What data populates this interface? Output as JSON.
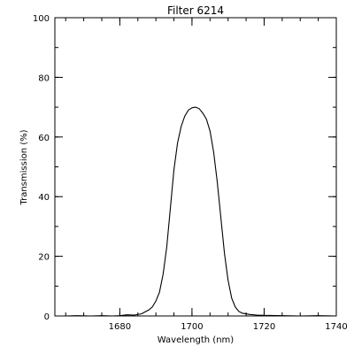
{
  "chart_data": {
    "type": "line",
    "title": "Filter 6214",
    "xlabel": "Wavelength (nm)",
    "ylabel": "Transmission (%)",
    "xlim": [
      1662,
      1740
    ],
    "ylim": [
      0,
      100
    ],
    "grid": false,
    "legend": "none",
    "x_ticks": [
      1680,
      1700,
      1720,
      1740
    ],
    "x_tick_labels": [
      "1680",
      "1700",
      "1720",
      "1740"
    ],
    "x_minor_step": 5,
    "y_ticks": [
      0,
      20,
      40,
      60,
      80,
      100
    ],
    "y_tick_labels": [
      "0",
      "20",
      "40",
      "60",
      "80",
      "100"
    ],
    "y_minor_step": 10,
    "series": [
      {
        "values_x": [
          1662,
          1665,
          1668,
          1672,
          1675,
          1678,
          1680,
          1682,
          1684,
          1686,
          1688,
          1689,
          1690,
          1691,
          1692,
          1693,
          1694,
          1695,
          1696,
          1697,
          1698,
          1699,
          1700,
          1701,
          1702,
          1703,
          1704,
          1705,
          1706,
          1707,
          1708,
          1709,
          1710,
          1711,
          1712,
          1713,
          1714,
          1716,
          1718,
          1720,
          1725,
          1730,
          1735,
          1740
        ],
        "values_y": [
          0,
          0,
          0.1,
          0,
          0.1,
          0,
          0.1,
          0.4,
          0.3,
          0.7,
          2,
          3,
          5,
          8,
          14,
          23,
          36,
          49,
          58,
          63.5,
          67,
          69,
          69.8,
          70,
          69.5,
          68,
          66,
          62,
          55,
          45,
          33,
          21,
          12,
          6,
          3,
          1.5,
          0.9,
          0.5,
          0.3,
          0.2,
          0.1,
          0,
          0.1,
          0
        ]
      }
    ]
  }
}
